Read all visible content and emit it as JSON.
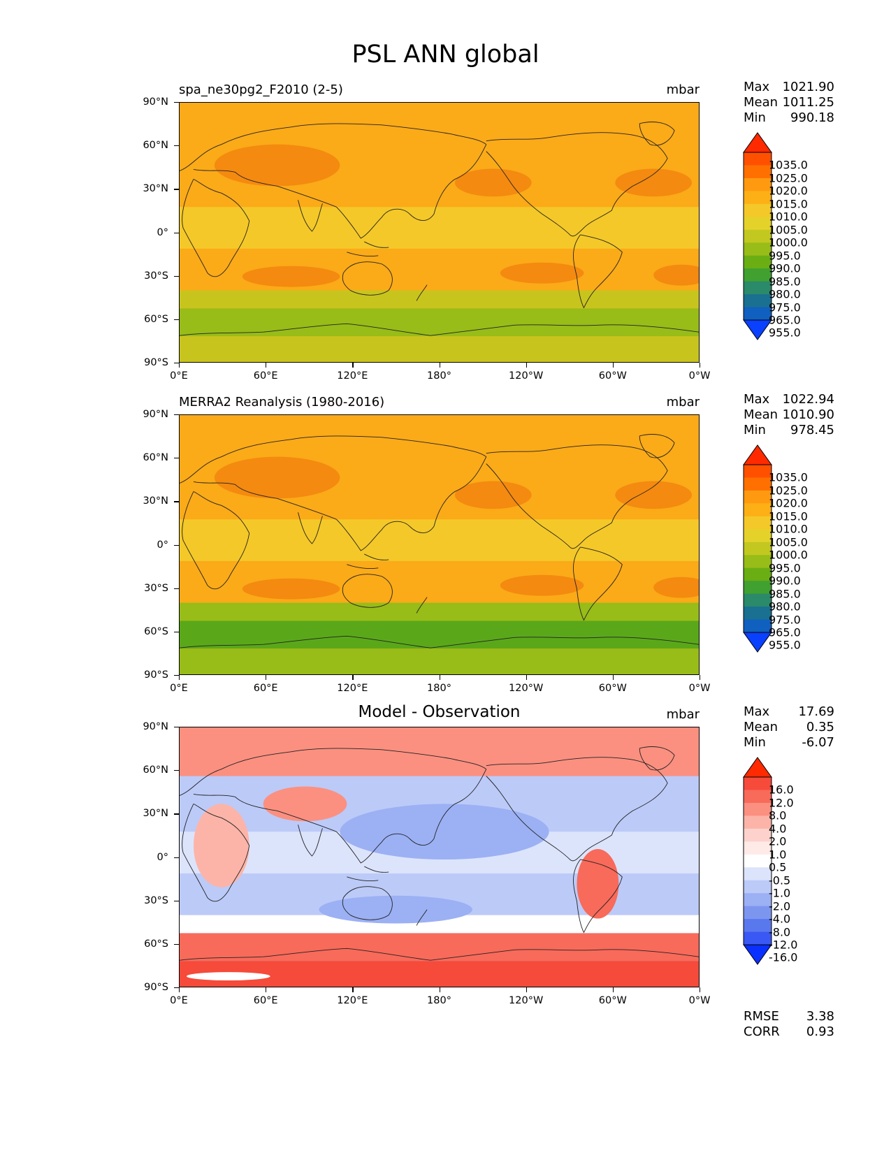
{
  "figure": {
    "title": "PSL ANN global"
  },
  "axes": {
    "lat_labels": [
      "90°N",
      "60°N",
      "30°N",
      "0°",
      "30°S",
      "60°S",
      "90°S"
    ],
    "lon_labels": [
      "0°E",
      "60°E",
      "120°E",
      "180°",
      "120°W",
      "60°W",
      "0°W"
    ]
  },
  "panels": [
    {
      "title": "spa_ne30pg2_F2010 (2-5)",
      "title_style": "left",
      "units": "mbar",
      "stats": [
        {
          "label": "Max",
          "value": "1021.90"
        },
        {
          "label": "Mean",
          "value": "1011.25"
        },
        {
          "label": "Min",
          "value": "990.18"
        }
      ],
      "colorbar": {
        "labels": [
          "1035.0",
          "1025.0",
          "1020.0",
          "1015.0",
          "1010.0",
          "1005.0",
          "1000.0",
          "995.0",
          "990.0",
          "985.0",
          "980.0",
          "975.0",
          "965.0",
          "955.0"
        ],
        "colors": [
          "#ff2a00",
          "#ff5000",
          "#ff7000",
          "#ff9a10",
          "#fcb016",
          "#f4c828",
          "#e4d22a",
          "#c2c820",
          "#98bc18",
          "#6aae14",
          "#40a030",
          "#2a8a6a",
          "#1a7090",
          "#1060c0",
          "#0a40ff"
        ]
      },
      "map_layers": {
        "background": "#fbaa18",
        "deep": "#f48a10",
        "tropics": "#f4c828",
        "south": "#c8c41e",
        "antarctic": "#98bc18",
        "deep_south": "#6aae14"
      }
    },
    {
      "title": "MERRA2 Reanalysis (1980-2016)",
      "title_style": "left",
      "units": "mbar",
      "stats": [
        {
          "label": "Max",
          "value": "1022.94"
        },
        {
          "label": "Mean",
          "value": "1010.90"
        },
        {
          "label": "Min",
          "value": "978.45"
        }
      ],
      "colorbar": {
        "labels": [
          "1035.0",
          "1025.0",
          "1020.0",
          "1015.0",
          "1010.0",
          "1005.0",
          "1000.0",
          "995.0",
          "990.0",
          "985.0",
          "980.0",
          "975.0",
          "965.0",
          "955.0"
        ],
        "colors": [
          "#ff2a00",
          "#ff5000",
          "#ff7000",
          "#ff9a10",
          "#fcb016",
          "#f4c828",
          "#e4d22a",
          "#c2c820",
          "#98bc18",
          "#6aae14",
          "#40a030",
          "#2a8a6a",
          "#1a7090",
          "#1060c0",
          "#0a40ff"
        ]
      },
      "map_layers": {
        "background": "#fbaa18",
        "deep": "#f48a10",
        "tropics": "#f4c828",
        "south": "#98bc18",
        "antarctic": "#5aa81a",
        "deep_south": "#40a030"
      }
    },
    {
      "title": "Model - Observation",
      "title_style": "center",
      "units": "mbar",
      "stats": [
        {
          "label": "Max",
          "value": "17.69"
        },
        {
          "label": "Mean",
          "value": "0.35"
        },
        {
          "label": "Min",
          "value": "-6.07"
        }
      ],
      "colorbar": {
        "labels": [
          "16.0",
          "12.0",
          "8.0",
          "4.0",
          "2.0",
          "1.0",
          "0.5",
          "-0.5",
          "-1.0",
          "-2.0",
          "-4.0",
          "-8.0",
          "-12.0",
          "-16.0"
        ],
        "colors": [
          "#ff2a00",
          "#f64a3a",
          "#f86a5a",
          "#fb9080",
          "#fcb4a8",
          "#fdd2cc",
          "#feeae6",
          "#ffffff",
          "#dce4fc",
          "#bccaf8",
          "#9cb0f4",
          "#7c96f0",
          "#5a78ee",
          "#3a58f4",
          "#0a30ff"
        ]
      },
      "map_layers": {
        "background": "#bccaf8",
        "deep": "#9cb0f4",
        "tropics": "#dce4fc",
        "south": "#ffffff",
        "antarctic": "#f86a5a",
        "deep_south": "#f64a3a"
      },
      "extra_stats": [
        {
          "label": "RMSE",
          "value": "3.38"
        },
        {
          "label": "CORR",
          "value": "0.93"
        }
      ]
    }
  ]
}
